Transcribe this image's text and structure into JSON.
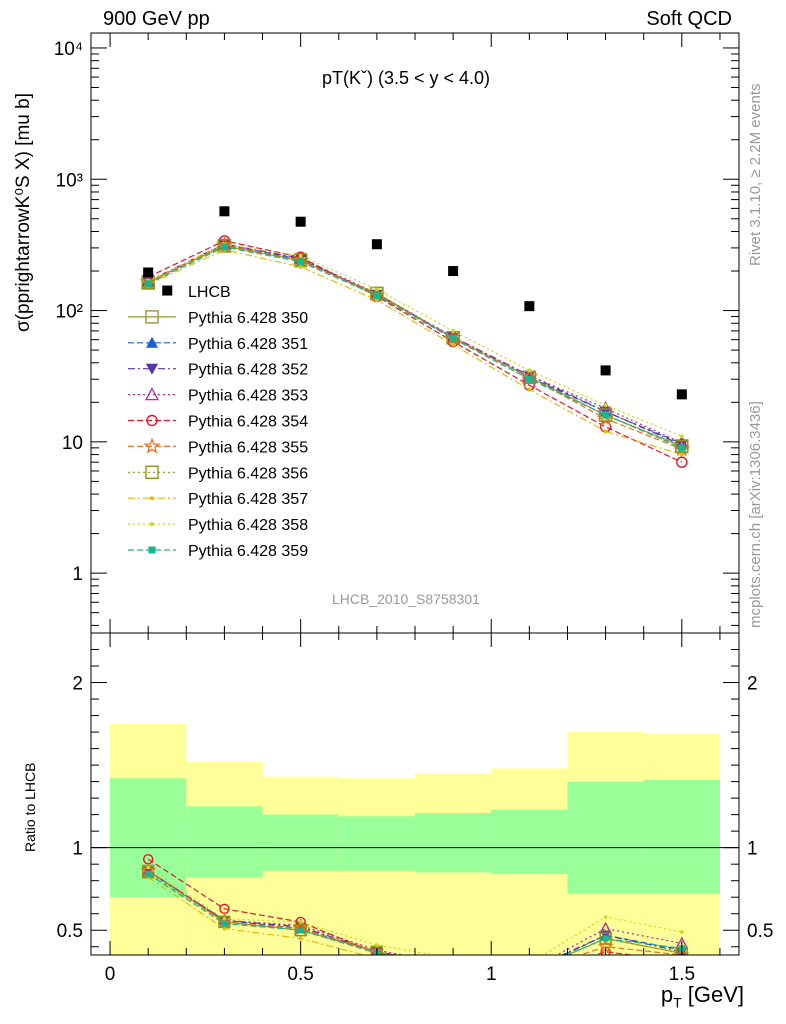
{
  "header": {
    "left": "900 GeV pp",
    "right": "Soft QCD"
  },
  "side_labels": {
    "rivet": "Rivet 3.1.10, ≥ 2.2M events",
    "mcplots": "mcplots.cern.ch [arXiv:1306.3436]"
  },
  "chart_data": [
    {
      "type": "scatter",
      "panel": "main",
      "title": "pT(Kˇ) (3.5 < y < 4.0)",
      "ylabel": "σ(pprightarrowK⁰S X) [mu b]",
      "xlabel": "",
      "xlim": [
        -0.05,
        1.65
      ],
      "ylim": [
        0.35,
        13000
      ],
      "yscale": "log",
      "y_tick_labels": [
        "1",
        "10",
        "10²",
        "10³",
        "10⁴"
      ],
      "watermark": "LHCB_2010_S8758301",
      "legend_position": "center-left",
      "x": [
        0.1,
        0.3,
        0.5,
        0.7,
        0.9,
        1.1,
        1.3,
        1.5
      ],
      "data": {
        "name": "LHCB",
        "x": [
          0.1,
          0.15,
          0.3,
          0.5,
          0.7,
          0.9,
          1.1,
          1.3,
          1.5
        ],
        "y": [
          195,
          142,
          570,
          475,
          320,
          200,
          108,
          35,
          23
        ]
      },
      "series": [
        {
          "name": "Pythia 6.428 350",
          "color": "#999933",
          "marker": "open-square",
          "dash": "solid",
          "y": [
            165,
            310,
            240,
            135,
            62,
            31,
            16,
            9.3
          ]
        },
        {
          "name": "Pythia 6.428 351",
          "color": "#1f5bd6",
          "marker": "filled-triangle-up",
          "dash": "dashed",
          "y": [
            165,
            320,
            245,
            132,
            62,
            31,
            17,
            9.7
          ]
        },
        {
          "name": "Pythia 6.428 352",
          "color": "#5533aa",
          "marker": "filled-triangle-down",
          "dash": "dashdot",
          "y": [
            168,
            322,
            250,
            132,
            63,
            32,
            17,
            9.5
          ]
        },
        {
          "name": "Pythia 6.428 353",
          "color": "#bb2299",
          "marker": "open-triangle-up",
          "dash": "dotted",
          "y": [
            168,
            320,
            250,
            135,
            63,
            32,
            18,
            9.8
          ]
        },
        {
          "name": "Pythia 6.428 354",
          "color": "#e8132a",
          "marker": "open-circle",
          "dash": "dashed",
          "y": [
            180,
            340,
            255,
            128,
            58,
            27,
            13,
            7.0
          ]
        },
        {
          "name": "Pythia 6.428 355",
          "color": "#f07020",
          "marker": "open-star",
          "dash": "dashed",
          "y": [
            165,
            315,
            240,
            132,
            62,
            31,
            15,
            8.8
          ]
        },
        {
          "name": "Pythia 6.428 356",
          "color": "#889911",
          "marker": "open-square",
          "dash": "dotted",
          "y": [
            162,
            312,
            242,
            135,
            62,
            31,
            16,
            9.2
          ]
        },
        {
          "name": "Pythia 6.428 357",
          "color": "#e8b810",
          "marker": "small-dot",
          "dash": "dashdot",
          "y": [
            158,
            290,
            215,
            120,
            55,
            25,
            12,
            8.0
          ]
        },
        {
          "name": "Pythia 6.428 358",
          "color": "#c8d81a",
          "marker": "small-dot",
          "dash": "dotted",
          "y": [
            168,
            320,
            260,
            145,
            70,
            35,
            19,
            11.0
          ]
        },
        {
          "name": "Pythia 6.428 359",
          "color": "#17b88a",
          "marker": "filled-square-small",
          "dash": "dashed",
          "y": [
            160,
            305,
            235,
            130,
            61,
            30,
            16,
            9.0
          ]
        }
      ]
    },
    {
      "type": "line",
      "panel": "ratio",
      "ylabel": "Ratio to LHCB",
      "xlabel": "p_T [GeV]",
      "xlim": [
        -0.05,
        1.65
      ],
      "ylim": [
        0.35,
        2.3
      ],
      "x_tick_labels": [
        "0",
        "0.5",
        "1",
        "1.5"
      ],
      "y_tick_labels": [
        "0.5",
        "1",
        "2"
      ],
      "bands": {
        "bins": [
          [
            0.0,
            0.2
          ],
          [
            0.2,
            0.4
          ],
          [
            0.4,
            0.6
          ],
          [
            0.6,
            0.8
          ],
          [
            0.8,
            1.0
          ],
          [
            1.0,
            1.2
          ],
          [
            1.2,
            1.4
          ],
          [
            1.4,
            1.6
          ]
        ],
        "outer": [
          [
            0.35,
            1.75
          ],
          [
            0.35,
            1.52
          ],
          [
            0.35,
            1.43
          ],
          [
            0.35,
            1.42
          ],
          [
            0.35,
            1.45
          ],
          [
            0.35,
            1.48
          ],
          [
            0.35,
            1.7
          ],
          [
            0.35,
            1.69
          ]
        ],
        "inner": [
          [
            0.7,
            1.42
          ],
          [
            0.82,
            1.25
          ],
          [
            0.86,
            1.2
          ],
          [
            0.86,
            1.19
          ],
          [
            0.85,
            1.21
          ],
          [
            0.84,
            1.23
          ],
          [
            0.72,
            1.4
          ],
          [
            0.72,
            1.41
          ]
        ],
        "outer_color": "#ffff99",
        "inner_color": "#99ff99"
      },
      "x": [
        0.1,
        0.3,
        0.5,
        0.7,
        0.9,
        1.1,
        1.3,
        1.5
      ],
      "series": [
        {
          "name": "Pythia 6.428 350",
          "y": [
            0.86,
            0.55,
            0.5,
            0.37,
            0.28,
            0.25,
            0.45,
            0.36
          ]
        },
        {
          "name": "Pythia 6.428 351",
          "y": [
            0.86,
            0.56,
            0.51,
            0.37,
            0.28,
            0.25,
            0.47,
            0.38
          ]
        },
        {
          "name": "Pythia 6.428 352",
          "y": [
            0.86,
            0.56,
            0.52,
            0.37,
            0.29,
            0.26,
            0.47,
            0.37
          ]
        },
        {
          "name": "Pythia 6.428 353",
          "y": [
            0.86,
            0.56,
            0.53,
            0.38,
            0.29,
            0.26,
            0.51,
            0.42
          ]
        },
        {
          "name": "Pythia 6.428 354",
          "y": [
            0.93,
            0.63,
            0.55,
            0.36,
            0.27,
            0.23,
            0.37,
            0.31
          ]
        },
        {
          "name": "Pythia 6.428 355",
          "y": [
            0.86,
            0.55,
            0.51,
            0.37,
            0.28,
            0.25,
            0.4,
            0.35
          ]
        },
        {
          "name": "Pythia 6.428 356",
          "y": [
            0.85,
            0.55,
            0.5,
            0.37,
            0.28,
            0.25,
            0.45,
            0.36
          ]
        },
        {
          "name": "Pythia 6.428 357",
          "y": [
            0.82,
            0.51,
            0.45,
            0.33,
            0.25,
            0.22,
            0.34,
            0.3
          ]
        },
        {
          "name": "Pythia 6.428 358",
          "y": [
            0.88,
            0.57,
            0.55,
            0.41,
            0.33,
            0.3,
            0.58,
            0.49
          ]
        },
        {
          "name": "Pythia 6.428 359",
          "y": [
            0.84,
            0.54,
            0.5,
            0.36,
            0.28,
            0.25,
            0.45,
            0.39
          ]
        }
      ]
    }
  ]
}
